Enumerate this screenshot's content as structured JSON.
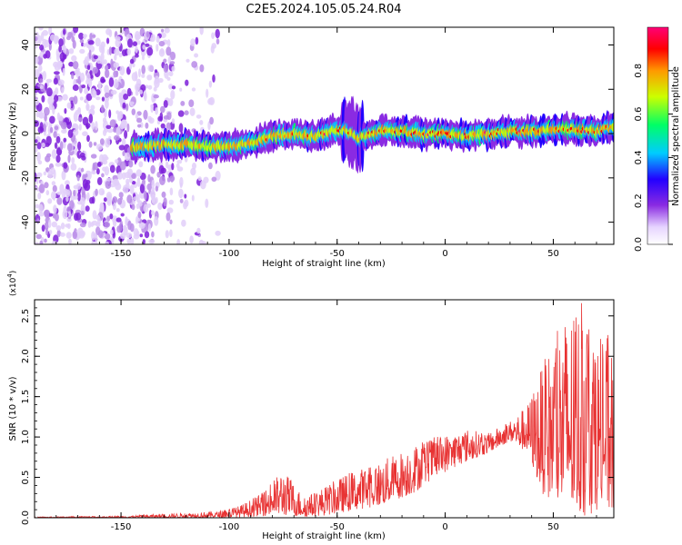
{
  "title": "C2E5.2024.105.05.24.R04",
  "chart_data": [
    {
      "type": "heatmap",
      "xlabel": "Height of straight line (km)",
      "ylabel": "Frequency (Hz)",
      "xlim": [
        -190,
        78
      ],
      "ylim": [
        -50,
        48
      ],
      "x_ticks": [
        -150,
        -100,
        -50,
        0,
        50
      ],
      "y_ticks": [
        -40,
        -20,
        0,
        20,
        40
      ],
      "colorbar": {
        "label": "Normalized spectral amplitude",
        "range": [
          0,
          1
        ],
        "ticks": [
          "0.0",
          "0.2",
          "0.4",
          "0.6",
          "0.8"
        ],
        "colors": [
          "#ffffff",
          "#e6d4ff",
          "#8a2be2",
          "#2200ff",
          "#00ccff",
          "#00ff66",
          "#ccff00",
          "#ff9900",
          "#ff0000",
          "#ff0077"
        ]
      },
      "ridge": {
        "x": [
          -140,
          -130,
          -120,
          -110,
          -100,
          -90,
          -80,
          -70,
          -60,
          -50,
          -45,
          -40,
          -30,
          -20,
          -10,
          0,
          10,
          20,
          30,
          40,
          50,
          60,
          70,
          78
        ],
        "y": [
          -6,
          -5,
          -5,
          -6,
          -6,
          -4,
          -1,
          0,
          -1,
          2,
          1,
          -2,
          1,
          1,
          0,
          0,
          -1,
          0,
          1,
          1,
          2,
          2,
          1,
          3
        ]
      },
      "scattered_noise_region": [
        -190,
        -105
      ],
      "grid": false
    },
    {
      "type": "line",
      "xlabel": "Height of straight line (km)",
      "ylabel": "SNR (10 * v/v)",
      "y_multiplier": "(x10",
      "y_multiplier_exp": "4",
      "xlim": [
        -190,
        78
      ],
      "ylim": [
        0,
        27000
      ],
      "x_ticks": [
        -150,
        -100,
        -50,
        0,
        50
      ],
      "y_ticks": [
        "0.0",
        "0.5",
        "1.0",
        "1.5",
        "2.0",
        "2.5"
      ],
      "envelope": {
        "x": [
          -190,
          -150,
          -120,
          -105,
          -95,
          -85,
          -75,
          -65,
          -55,
          -45,
          -30,
          -15,
          -5,
          10,
          20,
          30,
          38,
          45,
          55,
          65,
          70,
          78
        ],
        "upper": [
          100,
          200,
          600,
          800,
          1500,
          3000,
          6000,
          2500,
          4000,
          5500,
          7000,
          9000,
          10000,
          11000,
          10500,
          12000,
          14000,
          19000,
          25000,
          27000,
          22000,
          23000
        ],
        "lower": [
          0,
          0,
          0,
          0,
          50,
          200,
          300,
          100,
          300,
          800,
          1500,
          3000,
          5000,
          7000,
          8000,
          9500,
          8000,
          3000,
          500,
          0,
          1000,
          500
        ]
      },
      "line_color": "#e83333",
      "grid": false
    }
  ]
}
